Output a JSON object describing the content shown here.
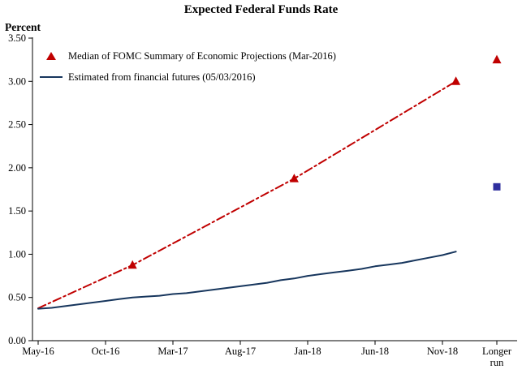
{
  "title": "Expected Federal Funds Rate",
  "axis": {
    "ylabel": "Percent"
  },
  "legend": [
    {
      "label": "Median of FOMC Summary of Economic Projections (Mar-2016)",
      "marker": "triangle-icon",
      "color": "#C00000"
    },
    {
      "label": "Estimated from financial futures (05/03/2016)",
      "marker": "line-icon",
      "color": "#17365D"
    }
  ],
  "chart_data": {
    "type": "line",
    "title": "Expected Federal Funds Rate",
    "xlabel": "",
    "ylabel": "Percent",
    "ylim": [
      0,
      3.5
    ],
    "ytick_step": 0.5,
    "ytick_labels": [
      "0.00",
      "0.50",
      "1.00",
      "1.50",
      "2.00",
      "2.50",
      "3.00",
      "3.50"
    ],
    "xtick_labels": [
      "May-16",
      "Oct-16",
      "Mar-17",
      "Aug-17",
      "Jan-18",
      "Jun-18",
      "Nov-18",
      "Longer run"
    ],
    "xtick_months": [
      0,
      5,
      10,
      15,
      20,
      25,
      30
    ],
    "grid": false,
    "legend_position": "upper-left-inside",
    "series": [
      {
        "name": "Median of FOMC Summary of Economic Projections (Mar-2016)",
        "color": "#C00000",
        "line_style": "dash-dot",
        "marker": "triangle",
        "x_months": [
          0,
          7,
          19,
          31
        ],
        "values": [
          0.375,
          0.875,
          1.875,
          3.0
        ],
        "markers_at_months": [
          7,
          19,
          31
        ],
        "longer_run": 3.25
      },
      {
        "name": "Estimated from financial futures (05/03/2016)",
        "color": "#17365D",
        "line_style": "solid",
        "marker": "none",
        "x_months": [
          0,
          1,
          2,
          3,
          4,
          5,
          6,
          7,
          8,
          9,
          10,
          11,
          12,
          13,
          14,
          15,
          16,
          17,
          18,
          19,
          20,
          21,
          22,
          23,
          24,
          25,
          26,
          27,
          28,
          29,
          30,
          31
        ],
        "values": [
          0.37,
          0.38,
          0.4,
          0.42,
          0.44,
          0.46,
          0.48,
          0.5,
          0.51,
          0.52,
          0.54,
          0.55,
          0.57,
          0.59,
          0.61,
          0.63,
          0.65,
          0.67,
          0.7,
          0.72,
          0.75,
          0.77,
          0.79,
          0.81,
          0.83,
          0.86,
          0.88,
          0.9,
          0.93,
          0.96,
          0.99,
          1.03
        ],
        "longer_run": 1.78,
        "longer_run_marker": "square",
        "longer_run_color": "#2E2E9E"
      }
    ]
  }
}
